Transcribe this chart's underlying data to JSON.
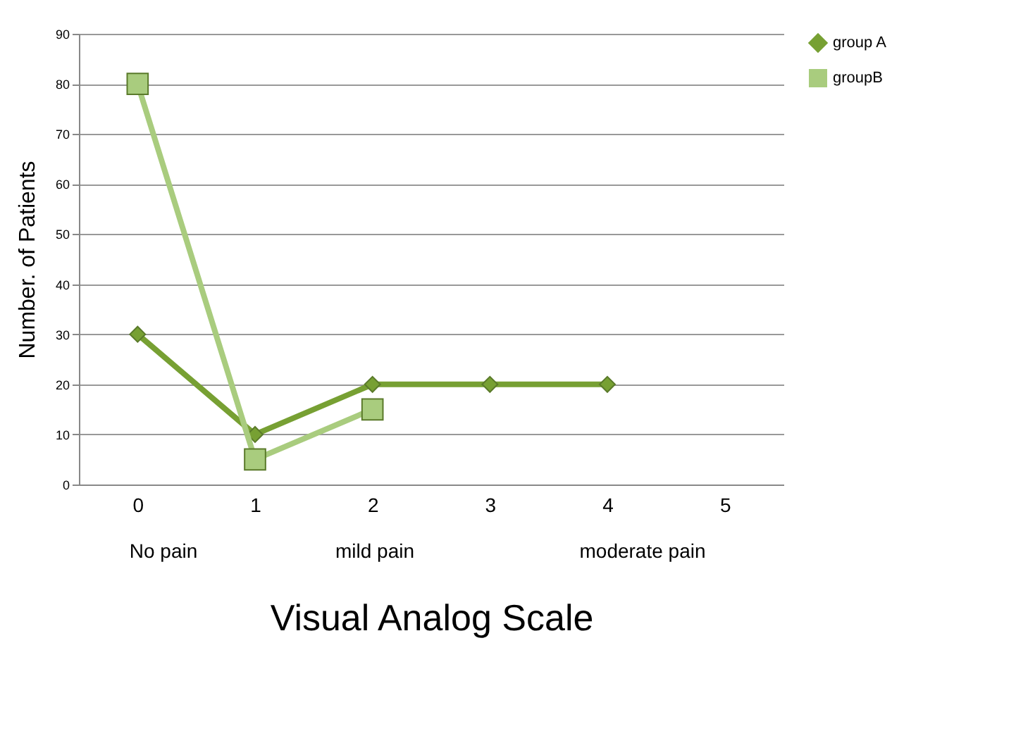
{
  "chart_data": {
    "type": "line",
    "categories": [
      "0",
      "1",
      "2",
      "3",
      "4",
      "5"
    ],
    "xlabel": "Visual Analog Scale",
    "ylabel": "Number. of Patients",
    "ylim": [
      0,
      90
    ],
    "yticks": [
      0,
      10,
      20,
      30,
      40,
      50,
      60,
      70,
      80,
      90
    ],
    "grid": "y",
    "legend": "right",
    "annotations": [
      "No pain",
      "mild pain",
      "moderate pain"
    ],
    "series": [
      {
        "name": "group A",
        "color": "#77a033",
        "marker": "diamond",
        "values": [
          30,
          10,
          20,
          20,
          20,
          null
        ]
      },
      {
        "name": "groupB",
        "color": "#a9cc7e",
        "marker": "square",
        "values": [
          80,
          5,
          15,
          null,
          null,
          null
        ]
      }
    ]
  }
}
